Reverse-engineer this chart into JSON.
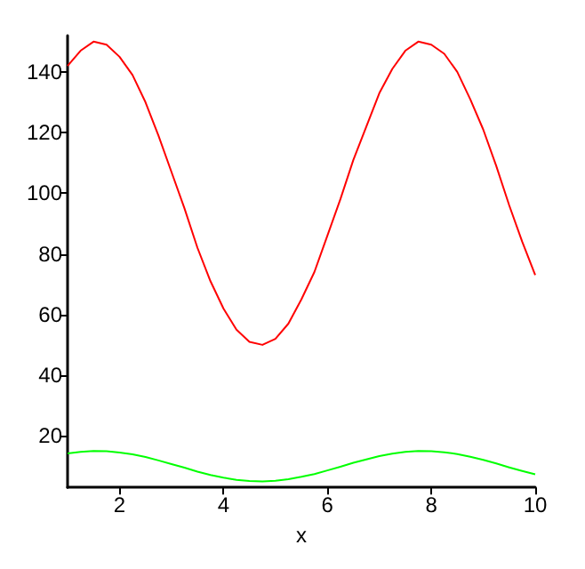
{
  "chart_data": {
    "type": "line",
    "xlabel": "x",
    "x": [
      1,
      1.25,
      1.5,
      1.75,
      2,
      2.25,
      2.5,
      2.75,
      3,
      3.25,
      3.5,
      3.75,
      4,
      4.25,
      4.5,
      4.75,
      5,
      5.25,
      5.5,
      5.75,
      6,
      6.25,
      6.5,
      6.75,
      7,
      7.25,
      7.5,
      7.75,
      8,
      8.25,
      8.5,
      8.75,
      9,
      9.25,
      9.5,
      9.75,
      10
    ],
    "series": [
      {
        "color": "#ff0000",
        "values": [
          142,
          147,
          150,
          149,
          145,
          139,
          130,
          119,
          107,
          95,
          82,
          71,
          62,
          55,
          51,
          50,
          52,
          57,
          65,
          74,
          86,
          98,
          111,
          122,
          133,
          141,
          147,
          150,
          149,
          146,
          140,
          131,
          121,
          109,
          96,
          84,
          73
        ]
      },
      {
        "color": "#00ff00",
        "values": [
          14.2,
          14.7,
          15,
          14.9,
          14.5,
          13.9,
          13,
          11.9,
          10.7,
          9.5,
          8.2,
          7.1,
          6.2,
          5.5,
          5.1,
          5,
          5.2,
          5.7,
          6.5,
          7.4,
          8.6,
          9.8,
          11.1,
          12.2,
          13.3,
          14.1,
          14.7,
          15,
          14.9,
          14.6,
          14,
          13.1,
          12.1,
          10.9,
          9.6,
          8.4,
          7.3
        ]
      }
    ],
    "xlim": [
      1,
      10
    ],
    "xticks": [
      2,
      4,
      6,
      8,
      10
    ],
    "ylim": [
      3,
      152
    ],
    "yticks": [
      20,
      40,
      60,
      80,
      100,
      120,
      140
    ],
    "grid": false,
    "marker": "none",
    "line_style": "solid"
  }
}
